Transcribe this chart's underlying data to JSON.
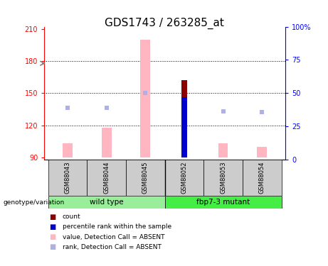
{
  "title": "GDS1743 / 263285_at",
  "samples": [
    "GSM88043",
    "GSM88044",
    "GSM88045",
    "GSM88052",
    "GSM88053",
    "GSM88054"
  ],
  "ylim_left": [
    88,
    212
  ],
  "ylim_right": [
    0,
    100
  ],
  "yticks_left": [
    90,
    120,
    150,
    180,
    210
  ],
  "yticks_right": [
    0,
    25,
    50,
    75,
    100
  ],
  "yright_labels": [
    "0",
    "25",
    "50",
    "75",
    "100%"
  ],
  "bar_baseline": 90,
  "pink_bars": [
    103,
    118,
    200,
    0,
    103,
    100
  ],
  "dark_red_bar_idx": 3,
  "dark_red_bar_val": 162,
  "blue_bar_idx": 3,
  "blue_bar_val": 146,
  "rank_squares_idx": [
    0,
    1,
    2,
    3,
    4,
    5
  ],
  "rank_squares_val": [
    136,
    136,
    150,
    144,
    133,
    132
  ],
  "rank_squares_show": [
    true,
    true,
    true,
    false,
    true,
    true
  ],
  "legend_items": [
    {
      "color": "#8b0000",
      "label": "count"
    },
    {
      "color": "#0000cd",
      "label": "percentile rank within the sample"
    },
    {
      "color": "#ffb6c1",
      "label": "value, Detection Call = ABSENT"
    },
    {
      "color": "#b0b0e0",
      "label": "rank, Detection Call = ABSENT"
    }
  ],
  "title_fontsize": 11,
  "tick_fontsize": 7,
  "pink_bar_width": 0.25,
  "dark_red_bar_width": 0.15,
  "blue_bar_width": 0.15,
  "group1_label": "wild type",
  "group2_label": "fbp7-3 mutant",
  "group1_color": "#99ee99",
  "group2_color": "#44ee44",
  "genotype_label": "genotype/variation",
  "sample_box_color": "#cccccc"
}
